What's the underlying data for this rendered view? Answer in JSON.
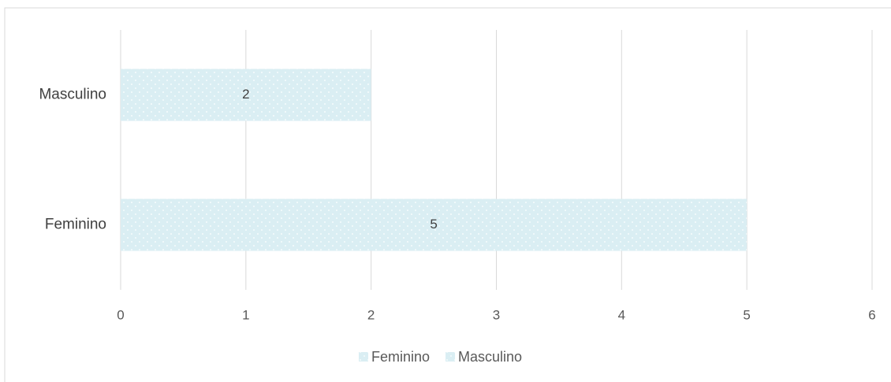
{
  "chart_data": {
    "type": "bar",
    "orientation": "horizontal",
    "categories": [
      "Feminino",
      "Masculino"
    ],
    "values": [
      5,
      2
    ],
    "color": "#daeef3",
    "xlim": [
      0,
      6
    ],
    "xticks": [
      0,
      1,
      2,
      3,
      4,
      5,
      6
    ],
    "grid": true,
    "legend": "bottom"
  }
}
